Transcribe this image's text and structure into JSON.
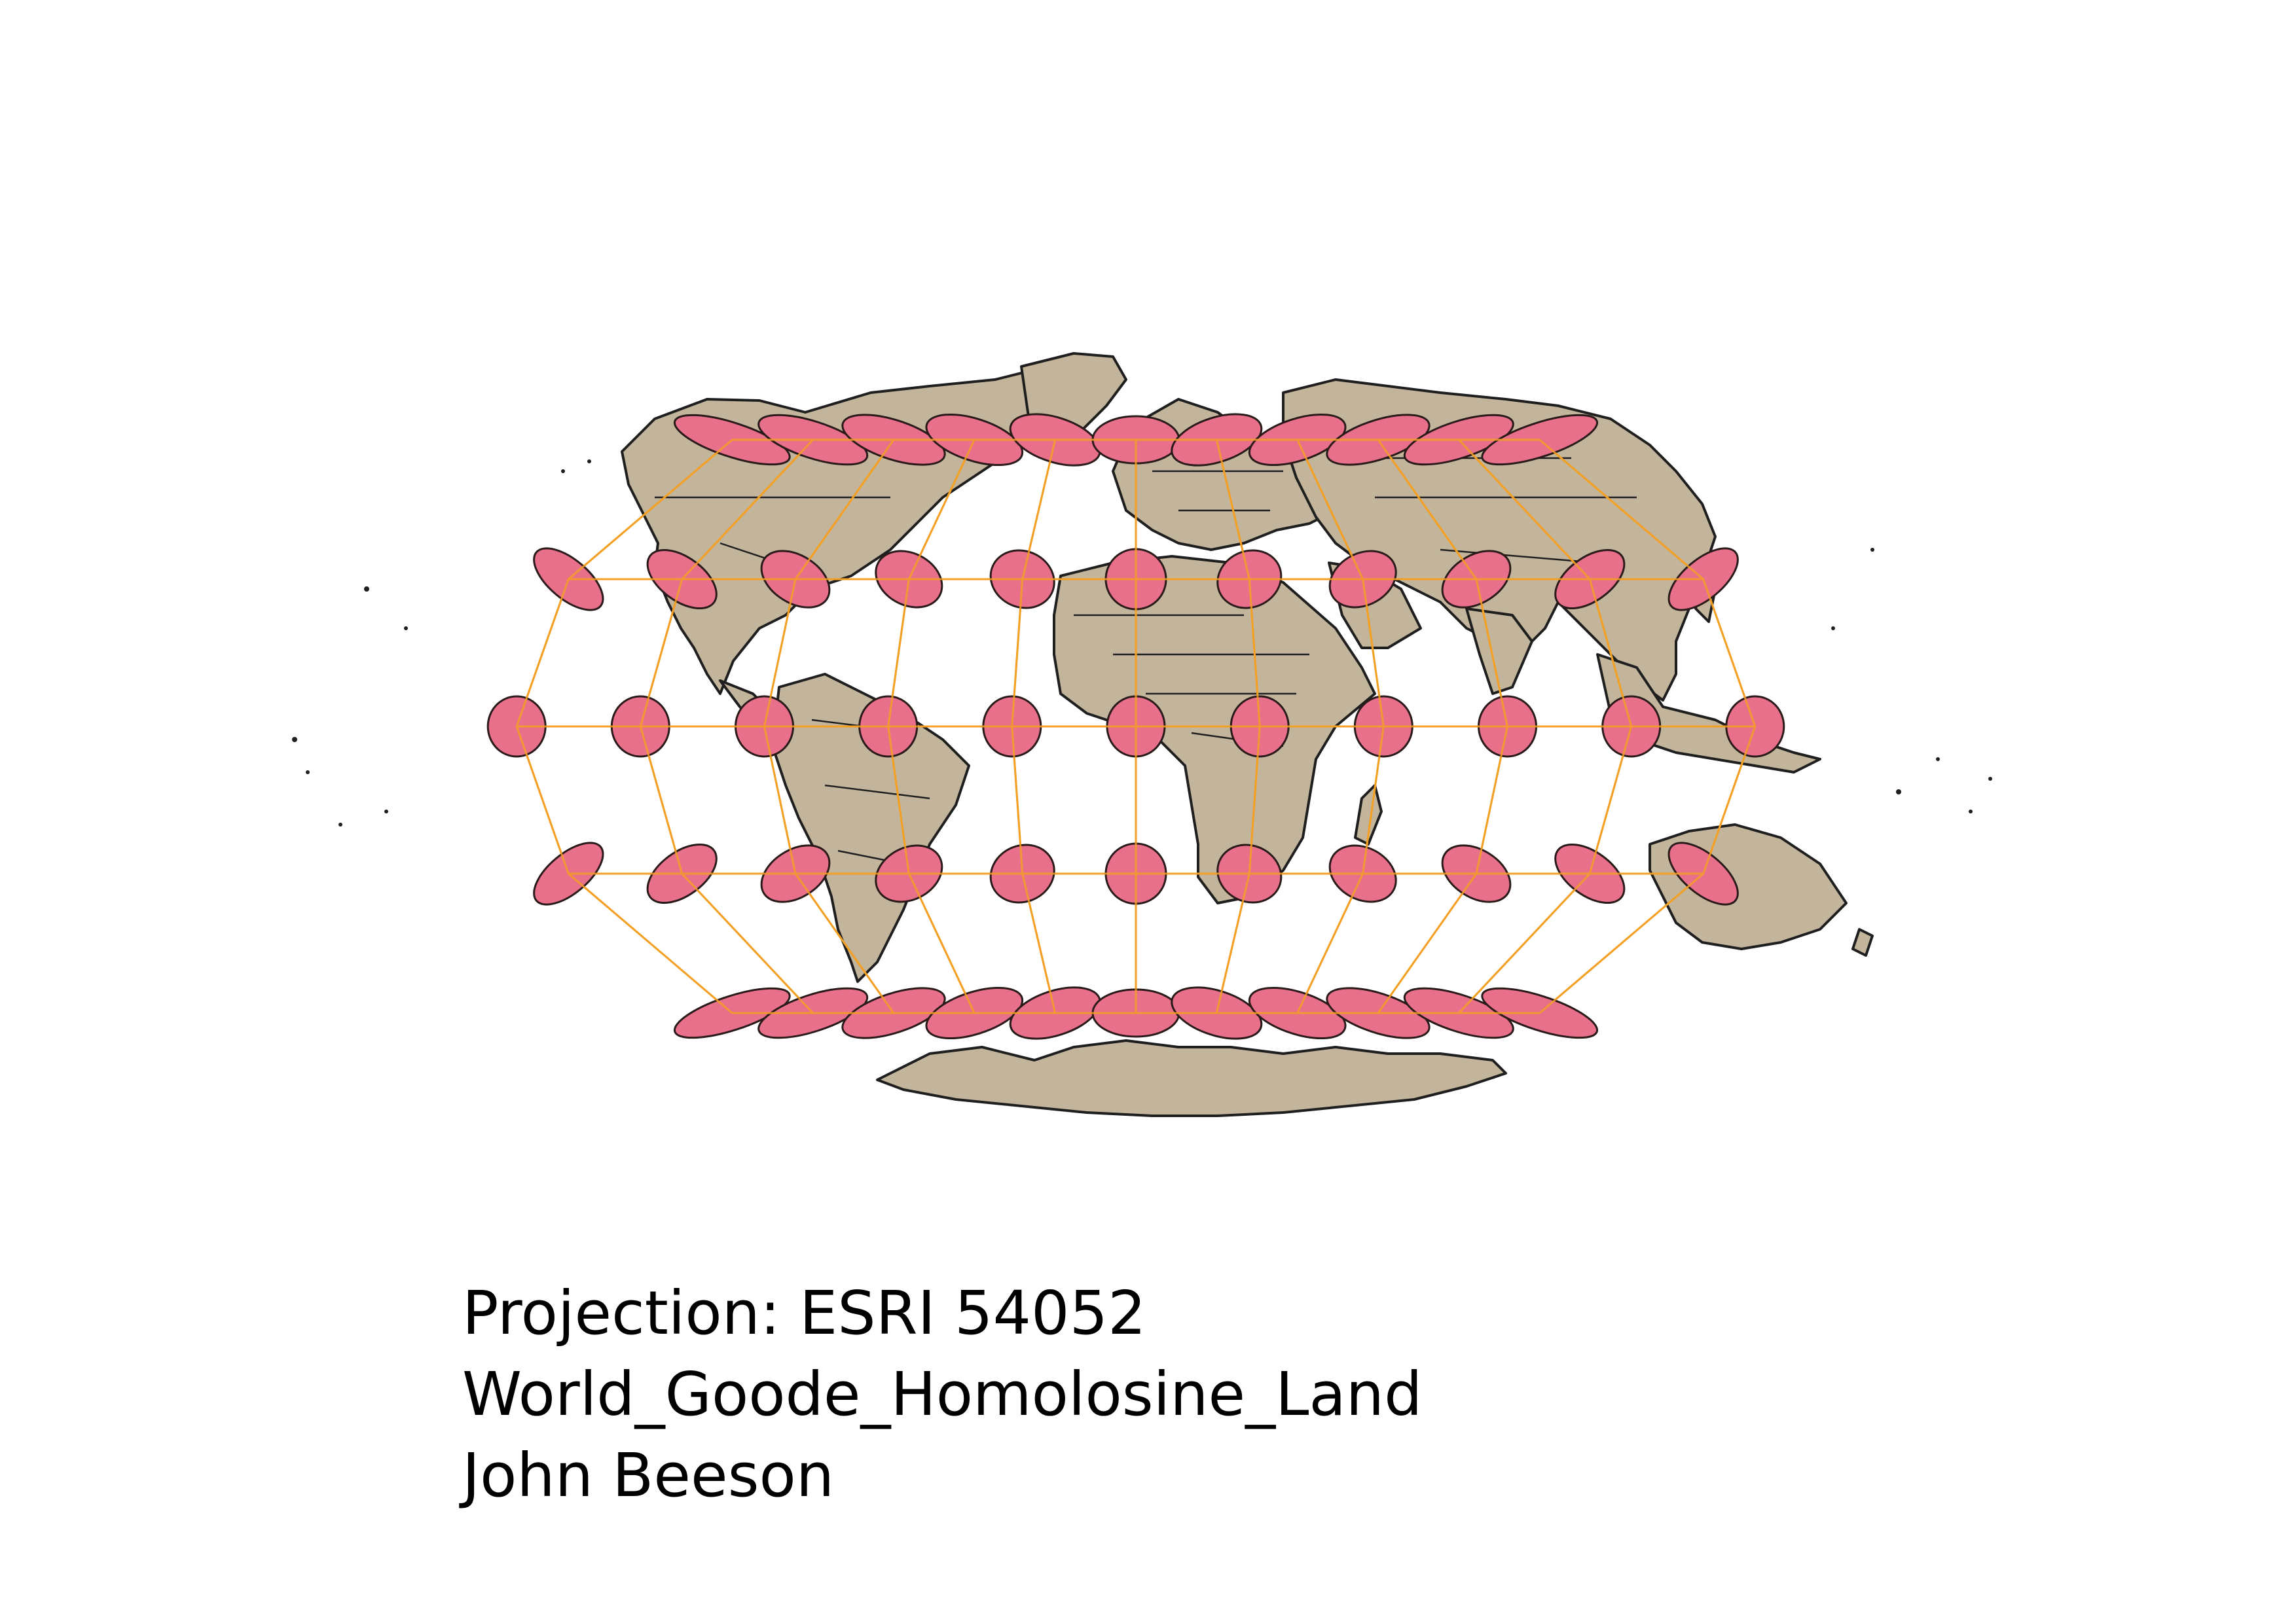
{
  "caption": {
    "line1": "Projection: ESRI 54052",
    "line2": "World_Goode_Homolosine_Land",
    "line3": "John Beeson"
  },
  "map": {
    "projection": "World_Goode_Homolosine_Land",
    "graticule_latitudes": [
      60,
      30,
      0,
      -30,
      -60
    ],
    "graticule_longitudes": [
      -150,
      -120,
      -90,
      -60,
      -30,
      0,
      30,
      60,
      90,
      120,
      150
    ],
    "colors": {
      "land": "#c2b59b",
      "coastline": "#1f1f1f",
      "graticule": "#f4a025",
      "indicatrix_fill": "#e8708a",
      "indicatrix_stroke": "#2a1a1a",
      "background": "#ffffff"
    }
  }
}
